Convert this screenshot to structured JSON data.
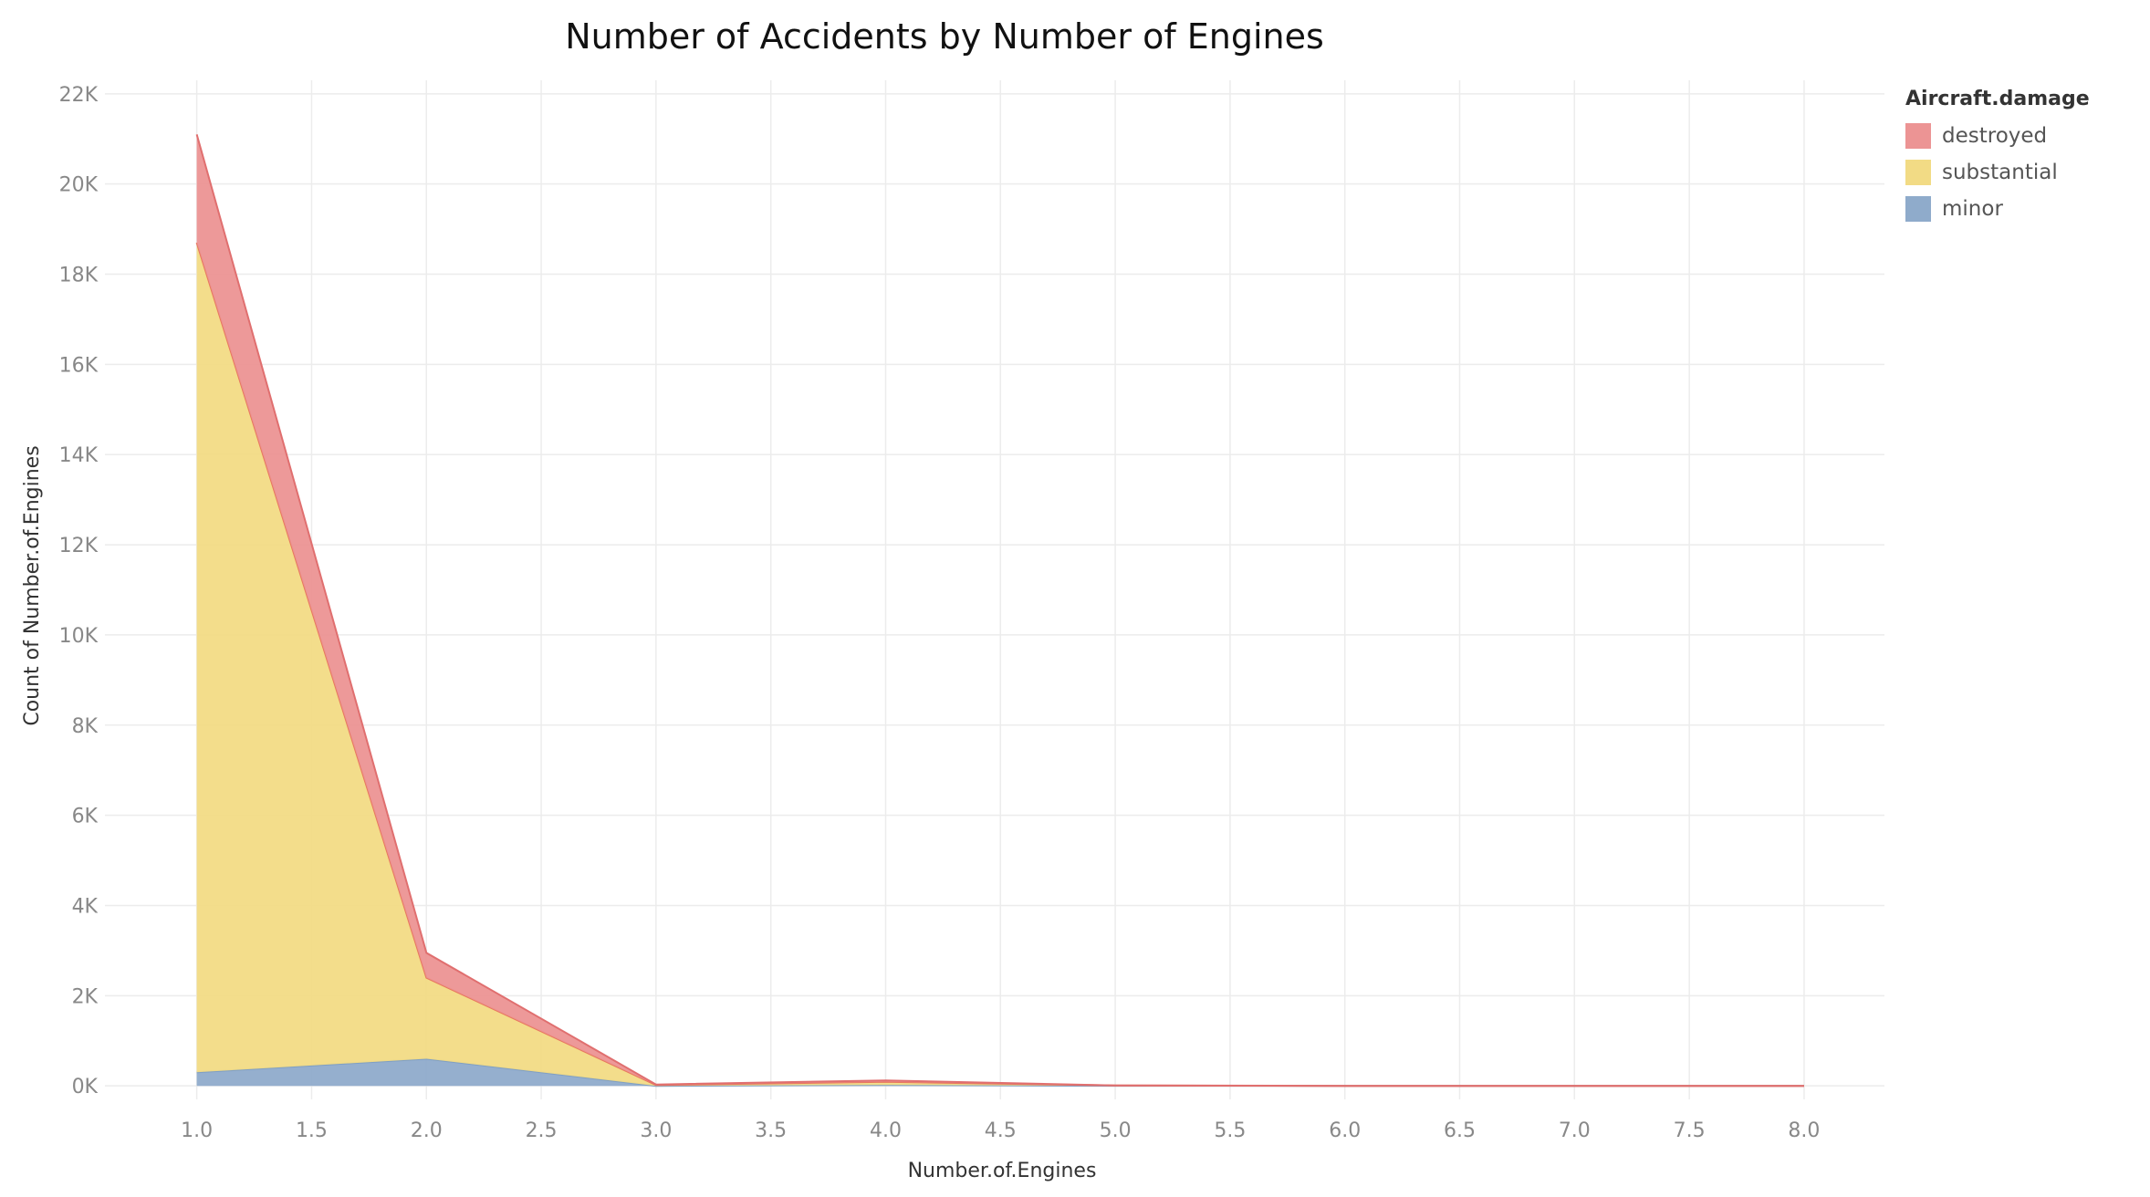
{
  "chart_data": {
    "type": "area",
    "stacked": true,
    "title": "Number of Accidents by Number of Engines",
    "xlabel": "Number.of.Engines",
    "ylabel": "Count of Number.of.Engines",
    "xlim": [
      0.6,
      8.35
    ],
    "ylim": [
      -300,
      22300
    ],
    "x_ticks": [
      1.0,
      1.5,
      2.0,
      2.5,
      3.0,
      3.5,
      4.0,
      4.5,
      5.0,
      5.5,
      6.0,
      6.5,
      7.0,
      7.5,
      8.0
    ],
    "x_tick_labels": [
      "1.0",
      "1.5",
      "2.0",
      "2.5",
      "3.0",
      "3.5",
      "4.0",
      "4.5",
      "5.0",
      "5.5",
      "6.0",
      "6.5",
      "7.0",
      "7.5",
      "8.0"
    ],
    "y_ticks": [
      0,
      2000,
      4000,
      6000,
      8000,
      10000,
      12000,
      14000,
      16000,
      18000,
      20000,
      22000
    ],
    "y_tick_labels": [
      "0K",
      "2K",
      "4K",
      "6K",
      "8K",
      "10K",
      "12K",
      "14K",
      "16K",
      "18K",
      "20K",
      "22K"
    ],
    "grid": true,
    "legend_title": "Aircraft.damage",
    "legend_position": "top-right",
    "x": [
      1,
      2,
      3,
      4,
      5,
      6,
      7,
      8
    ],
    "series": [
      {
        "name": "minor",
        "color": "#8fabcb",
        "values": [
          300,
          600,
          0,
          20,
          2,
          0,
          0,
          0
        ]
      },
      {
        "name": "substantial",
        "color": "#f2db85",
        "values": [
          18400,
          1800,
          20,
          70,
          5,
          0,
          0,
          0
        ]
      },
      {
        "name": "destroyed",
        "color": "#ec9494",
        "values": [
          2400,
          550,
          10,
          30,
          3,
          0,
          0,
          0
        ]
      }
    ],
    "legend_order": [
      "destroyed",
      "substantial",
      "minor"
    ]
  }
}
